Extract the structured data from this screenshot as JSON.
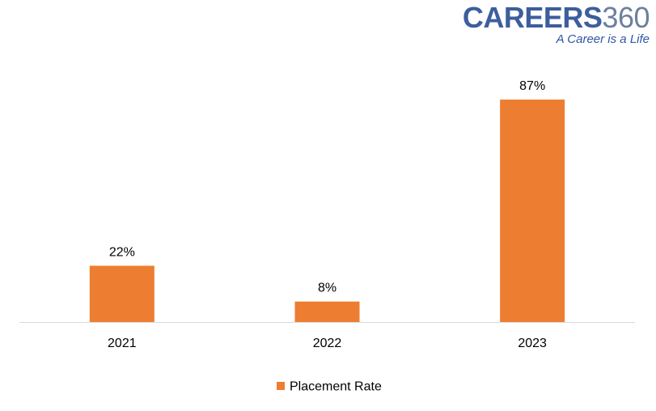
{
  "logo": {
    "brand": "CAREERS",
    "number": "360",
    "tagline": "A Career is a Life",
    "brand_color": "#3d5e9c",
    "number_color": "#6d7f9d",
    "tagline_color": "#2e56a6"
  },
  "chart_data": {
    "type": "bar",
    "categories": [
      "2021",
      "2022",
      "2023"
    ],
    "series": [
      {
        "name": "Placement Rate",
        "values": [
          22,
          8,
          87
        ],
        "labels": [
          "22%",
          "8%",
          "87%"
        ],
        "color": "#ed7d31"
      }
    ],
    "ylim": [
      0,
      100
    ],
    "grid": false,
    "legend": "bottom",
    "axis_color": "#d9d9d9",
    "text_color": "#000000"
  }
}
